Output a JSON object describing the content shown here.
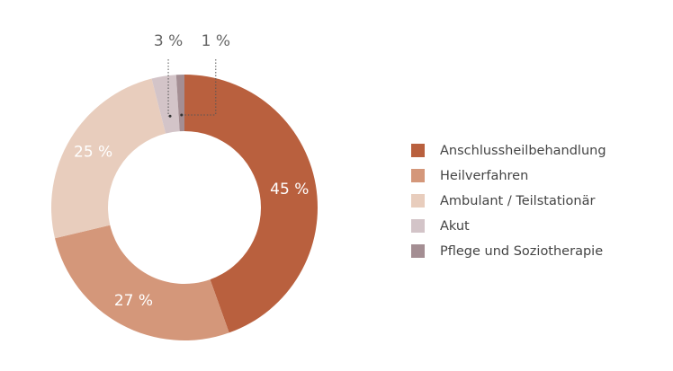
{
  "chart_data": {
    "type": "donut",
    "categories": [
      "Anschlussheilbehandlung",
      "Heilverfahren",
      "Ambulant / Teilstationär",
      "Akut",
      "Pflege und Soziotherapie"
    ],
    "values": [
      45,
      27,
      25,
      3,
      1
    ],
    "value_labels": [
      "45 %",
      "27 %",
      "25 %",
      "3 %",
      "1 %"
    ],
    "colors": [
      "#b9603e",
      "#d4977a",
      "#e8cdbd",
      "#d3c4c8",
      "#a48e93"
    ],
    "legend": "right"
  }
}
